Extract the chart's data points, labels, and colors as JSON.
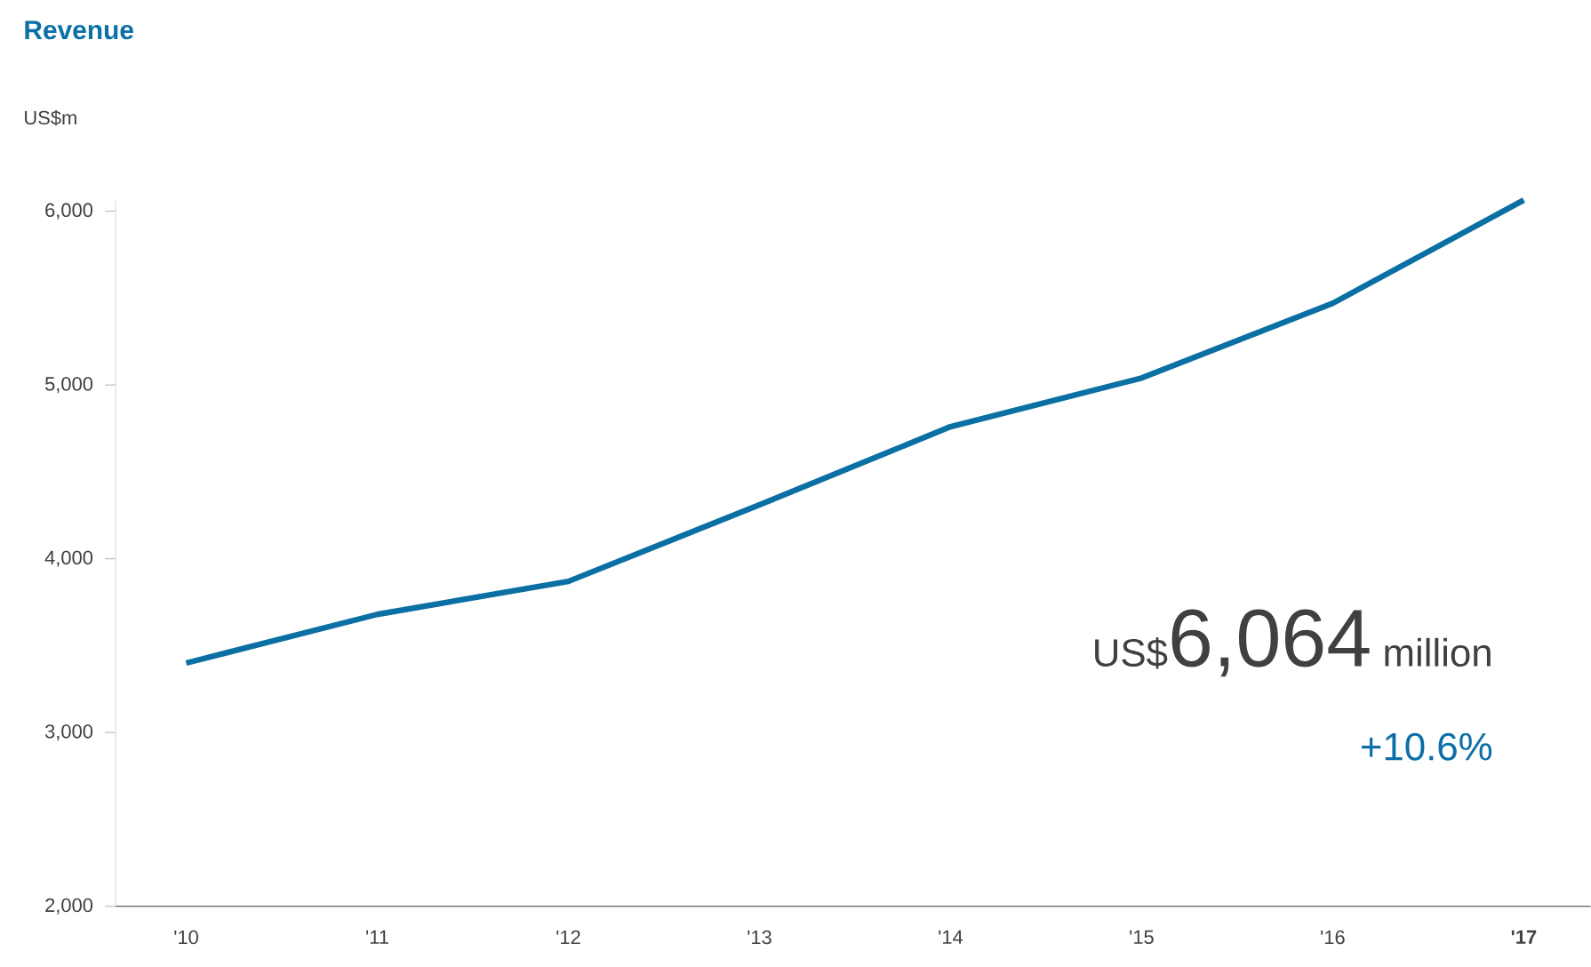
{
  "chart_data": {
    "type": "line",
    "title": "Revenue",
    "ylabel": "US$m",
    "categories": [
      "'10",
      "'11",
      "'12",
      "'13",
      "'14",
      "'15",
      "'16",
      "'17"
    ],
    "series": [
      {
        "color": "#0a6fa3",
        "values": [
          3400,
          3680,
          3870,
          4310,
          4760,
          5040,
          5470,
          6064
        ]
      }
    ],
    "ylim": [
      2000,
      6064
    ],
    "yticks": [
      {
        "value": 2000,
        "label": "2,000"
      },
      {
        "value": 3000,
        "label": "3,000"
      },
      {
        "value": 4000,
        "label": "4,000"
      },
      {
        "value": 5000,
        "label": "5,000"
      },
      {
        "value": 6000,
        "label": "6,000"
      }
    ],
    "annotations": [
      "US$",
      "6,064",
      "million",
      "+10.6%"
    ],
    "grid": false,
    "marker": "none",
    "line_style": "solid"
  }
}
